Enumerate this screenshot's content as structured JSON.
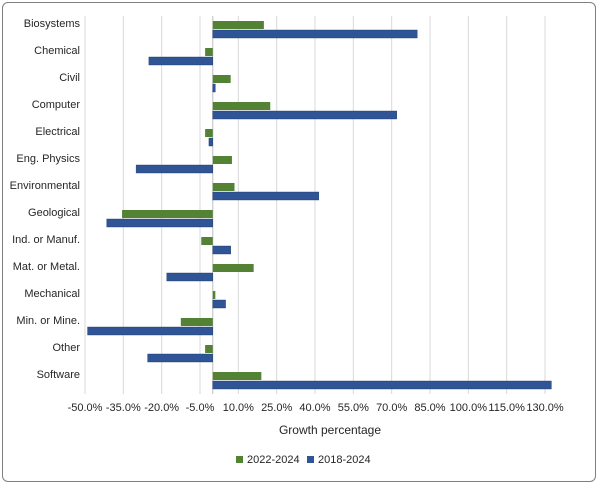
{
  "chart_data": {
    "type": "bar",
    "orientation": "horizontal",
    "categories": [
      "Biosystems",
      "Chemical",
      "Civil",
      "Computer",
      "Electrical",
      "Eng. Physics",
      "Environmental",
      "Geological",
      "Ind. or Manuf.",
      "Mat. or Metal.",
      "Mechanical",
      "Min. or Mine.",
      "Other",
      "Software"
    ],
    "series": [
      {
        "name": "2022-2024",
        "color": "#548235",
        "values": [
          20.0,
          -3.0,
          7.0,
          22.5,
          -3.0,
          7.5,
          8.5,
          -35.5,
          -4.5,
          16.0,
          1.0,
          -12.5,
          -3.0,
          19.0
        ]
      },
      {
        "name": "2018-2024",
        "color": "#2f5597",
        "values": [
          80.0,
          -25.0,
          1.0,
          72.0,
          -1.5,
          -30.0,
          41.5,
          -41.5,
          7.0,
          -18.0,
          5.0,
          -49.0,
          -25.5,
          132.5
        ]
      }
    ],
    "xlabel": "Growth percentage",
    "xlim": [
      -50,
      130
    ],
    "xticks": [
      "-50.0%",
      "-35.0%",
      "-20.0%",
      "-5.0%",
      "10.0%",
      "25.0%",
      "40.0%",
      "55.0%",
      "70.0%",
      "85.0%",
      "100.0%",
      "115.0%",
      "130.0%"
    ],
    "grid": true,
    "legend": "bottom"
  }
}
